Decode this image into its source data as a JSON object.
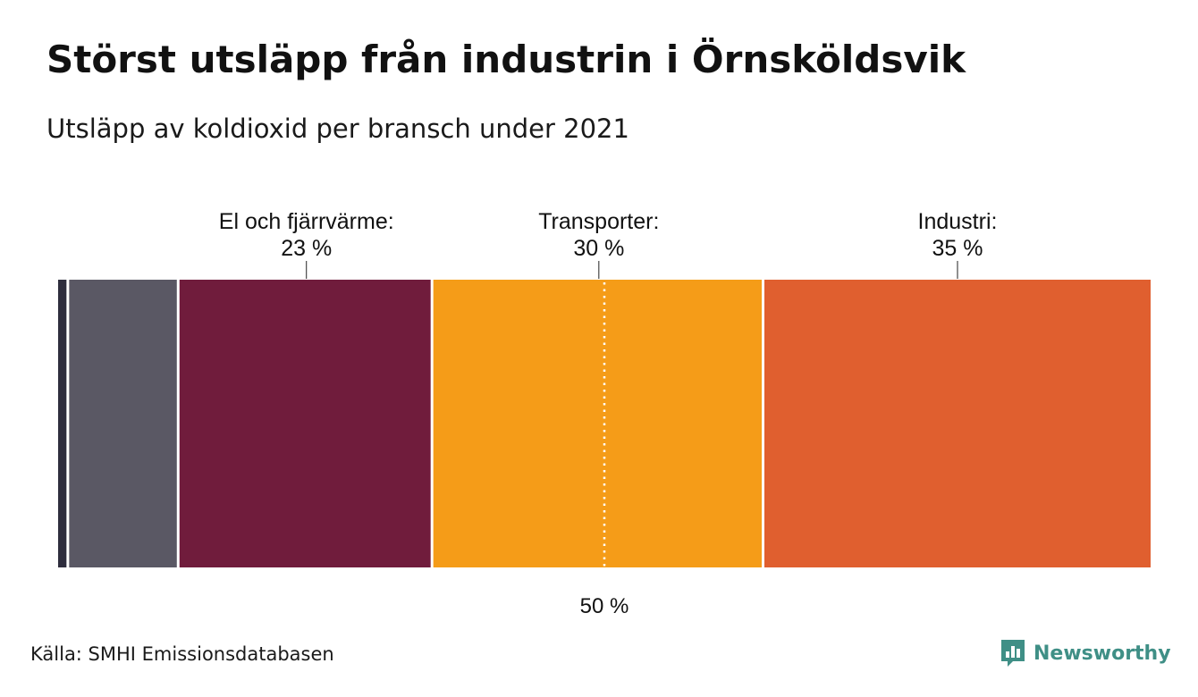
{
  "header": {
    "title": "Störst utsläpp från industrin i Örnsköldsvik",
    "subtitle": "Utsläpp av koldioxid per bransch under 2021"
  },
  "chart_data": {
    "type": "bar",
    "orientation": "horizontal-stacked-100",
    "unit": "%",
    "segments": [
      {
        "value": 1,
        "color": "#2e2d3d"
      },
      {
        "value": 10,
        "color": "#5a5864"
      },
      {
        "name": "El och fjärrvärme",
        "label": "El och fjärrvärme:",
        "value": 23,
        "value_label": "23 %",
        "color": "#701c3c"
      },
      {
        "name": "Transporter",
        "label": "Transporter:",
        "value": 30,
        "value_label": "30 %",
        "color": "#f59c18"
      },
      {
        "name": "Industri",
        "label": "Industri:",
        "value": 35,
        "value_label": "35 %",
        "color": "#e05f2f"
      }
    ],
    "reference_line": {
      "value": 50,
      "label": "50 %",
      "style": "dotted"
    },
    "xlim": [
      0,
      100
    ],
    "grid": false,
    "legend": "none"
  },
  "footer": {
    "source": "Källa: SMHI Emissionsdatabasen",
    "brand": "Newsworthy",
    "brand_icon": "newsworthy-logo-icon",
    "brand_color": "#3f8f86"
  }
}
